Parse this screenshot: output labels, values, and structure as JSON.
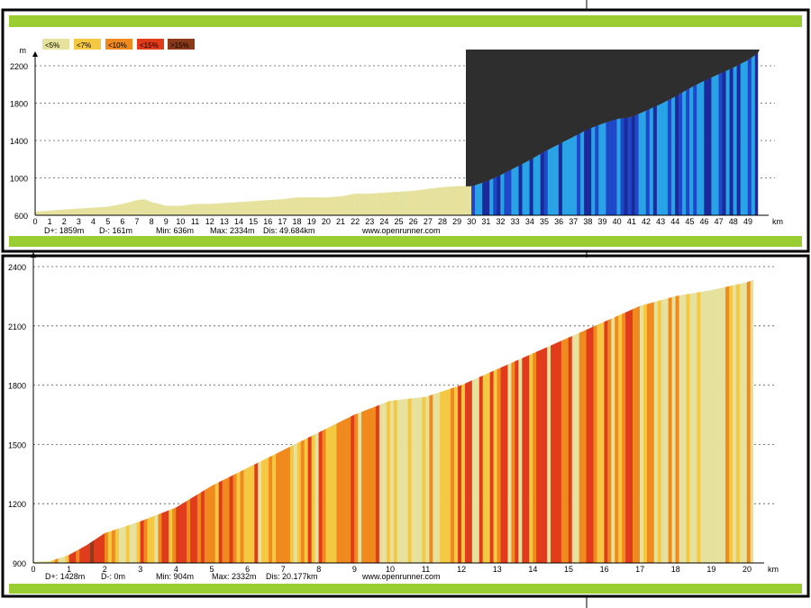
{
  "legend": [
    {
      "label": "<5%",
      "color": "#e6e29e"
    },
    {
      "label": "<7%",
      "color": "#f5c842"
    },
    {
      "label": "<10%",
      "color": "#f08a1e"
    },
    {
      "label": "<15%",
      "color": "#e03c1c"
    },
    {
      "label": ">15%",
      "color": "#8b3a1a"
    }
  ],
  "colors": {
    "frame": "#000000",
    "bar": "#9acd32",
    "grid": "#555555",
    "overlay": "#2e2e2e",
    "blue_dark": "#1a2a9a",
    "blue_light": "#29a3e6"
  },
  "chart_data": [
    {
      "type": "area",
      "ylabel": "m",
      "xlabel": "km",
      "ylim": [
        600,
        2200
      ],
      "yticks": [
        600,
        1000,
        1400,
        1800,
        2200
      ],
      "xlim": [
        0,
        49.684
      ],
      "xticks": [
        0,
        1,
        2,
        3,
        4,
        5,
        6,
        7,
        8,
        9,
        10,
        11,
        12,
        13,
        14,
        15,
        16,
        17,
        18,
        19,
        20,
        21,
        22,
        23,
        24,
        25,
        26,
        27,
        28,
        29,
        30,
        31,
        32,
        33,
        34,
        35,
        36,
        37,
        38,
        39,
        40,
        41,
        42,
        43,
        44,
        45,
        46,
        47,
        48,
        49
      ],
      "grid": true,
      "legend_position": "top-left",
      "x": [
        0,
        2,
        4,
        5,
        6,
        7,
        7.5,
        8,
        9,
        10,
        11,
        12,
        13,
        14,
        15,
        16,
        17,
        18,
        19,
        20,
        21,
        22,
        23,
        24,
        25,
        26,
        27,
        28,
        29,
        30,
        31,
        32,
        33,
        34,
        35,
        36,
        37,
        38,
        39,
        40,
        41,
        42,
        43,
        44,
        45,
        46,
        47,
        48,
        49,
        49.684
      ],
      "y": [
        636,
        660,
        680,
        690,
        720,
        760,
        770,
        740,
        700,
        700,
        720,
        720,
        730,
        740,
        750,
        760,
        770,
        790,
        790,
        790,
        800,
        830,
        830,
        840,
        850,
        860,
        880,
        900,
        910,
        910,
        960,
        1030,
        1110,
        1190,
        1280,
        1360,
        1440,
        1520,
        1580,
        1630,
        1650,
        1720,
        1790,
        1870,
        1960,
        2040,
        2110,
        2180,
        2260,
        2334
      ],
      "stats": {
        "d_plus": "D+: 1859m",
        "d_minus": "D-: 161m",
        "min": "Min: 636m",
        "max": "Max: 2334m",
        "dis": "Dis: 49.684km",
        "site": "www.openrunner.com"
      }
    },
    {
      "type": "area",
      "ylabel": "",
      "xlabel": "km",
      "ylim": [
        900,
        2400
      ],
      "yticks": [
        900,
        1200,
        1500,
        1800,
        2100,
        2400
      ],
      "xlim": [
        0,
        20.177
      ],
      "xticks": [
        0,
        1,
        2,
        3,
        4,
        5,
        6,
        7,
        8,
        9,
        10,
        11,
        12,
        13,
        14,
        15,
        16,
        17,
        18,
        19,
        20
      ],
      "grid": true,
      "x": [
        0,
        0.5,
        1,
        1.5,
        2,
        3,
        4,
        5,
        6,
        7,
        8,
        9,
        10,
        11,
        12,
        13,
        14,
        15,
        16,
        17,
        18,
        19,
        20,
        20.177
      ],
      "y": [
        904,
        910,
        940,
        990,
        1050,
        1110,
        1180,
        1290,
        1380,
        1470,
        1560,
        1650,
        1720,
        1740,
        1800,
        1880,
        1960,
        2040,
        2120,
        2200,
        2250,
        2280,
        2320,
        2332
      ],
      "stats": {
        "d_plus": "D+: 1428m",
        "d_minus": "D-: 0m",
        "min": "Min: 904m",
        "max": "Max: 2332m",
        "dis": "Dis: 20.177km",
        "site": "www.openrunner.com"
      }
    }
  ]
}
